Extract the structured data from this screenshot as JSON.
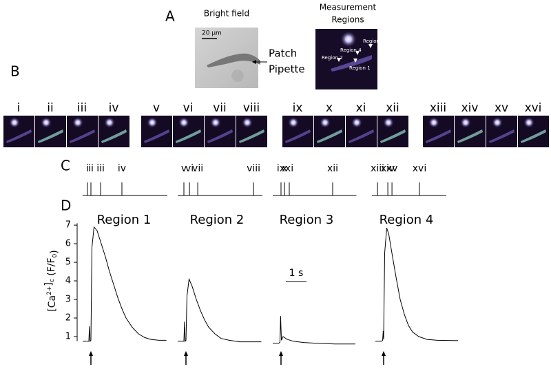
{
  "panels": {
    "A": "A",
    "B": "B",
    "C": "C",
    "D": "D"
  },
  "bright_field": {
    "title": "Bright field",
    "scale": "20 µm",
    "pointer": [
      "Patch",
      "Pipette"
    ]
  },
  "measurement": {
    "title": [
      "Measurement",
      "Regions"
    ],
    "regions": [
      "Region 3",
      "Region 4",
      "Region 2",
      "Region 1"
    ]
  },
  "timeline": [
    {
      "xlim": [
        0,
        4.1
      ],
      "events": [
        {
          "label": "i",
          "t": 0.23
        },
        {
          "label": "ii",
          "t": 0.4
        },
        {
          "label": "iii",
          "t": 0.87
        },
        {
          "label": "iv",
          "t": 1.9
        }
      ]
    },
    {
      "xlim": [
        0,
        4.1
      ],
      "events": [
        {
          "label": "v",
          "t": 0.3
        },
        {
          "label": "vi",
          "t": 0.57
        },
        {
          "label": "vii",
          "t": 0.97
        },
        {
          "label": "viii",
          "t": 3.67
        }
      ]
    },
    {
      "xlim": [
        0,
        4.05
      ],
      "events": [
        {
          "label": "ix",
          "t": 0.4
        },
        {
          "label": "x",
          "t": 0.57
        },
        {
          "label": "xi",
          "t": 0.8
        },
        {
          "label": "xii",
          "t": 2.9
        }
      ]
    },
    {
      "xlim": [
        0,
        3.6
      ],
      "events": [
        {
          "label": "xiii",
          "t": 0.27
        },
        {
          "label": "xiv",
          "t": 0.77
        },
        {
          "label": "xv",
          "t": 0.97
        },
        {
          "label": "xvi",
          "t": 2.3
        }
      ]
    }
  ],
  "scale_bar": {
    "label": "1 s",
    "value": 1
  },
  "chart_data": [
    {
      "type": "line",
      "title": "Region 1",
      "color": "#000000",
      "xlim": [
        0,
        4.1
      ],
      "ylim": [
        0.5,
        7.3
      ],
      "yticks": [
        1,
        2,
        3,
        4,
        5,
        6,
        7
      ],
      "ylabel_parts": [
        "[Ca",
        "2+",
        "]",
        "c",
        " (F/F",
        "0",
        ")"
      ],
      "stimulus": 0.4,
      "x": [
        0,
        0.3,
        0.33,
        0.36,
        0.4,
        0.45,
        0.55,
        0.7,
        0.9,
        1.1,
        1.3,
        1.5,
        1.7,
        1.9,
        2.1,
        2.4,
        2.7,
        3.0,
        3.3,
        3.7,
        4.05
      ],
      "values": [
        0.75,
        0.75,
        1.55,
        0.75,
        0.8,
        5.8,
        6.9,
        6.7,
        6.0,
        5.3,
        4.5,
        3.8,
        3.1,
        2.5,
        2.0,
        1.5,
        1.15,
        0.95,
        0.85,
        0.8,
        0.8
      ]
    },
    {
      "type": "line",
      "title": "Region 2",
      "color": "#000000",
      "xlim": [
        0,
        4.1
      ],
      "ylim": [
        0.5,
        7.3
      ],
      "stimulus": 0.4,
      "x": [
        0,
        0.3,
        0.33,
        0.36,
        0.4,
        0.45,
        0.55,
        0.7,
        0.9,
        1.1,
        1.3,
        1.5,
        1.8,
        2.1,
        2.5,
        3.0,
        3.5,
        4.05
      ],
      "values": [
        0.75,
        0.75,
        1.8,
        0.75,
        0.8,
        3.2,
        4.1,
        3.7,
        3.0,
        2.4,
        1.9,
        1.5,
        1.15,
        0.9,
        0.8,
        0.72,
        0.72,
        0.72
      ]
    },
    {
      "type": "line",
      "title": "Region 3",
      "color": "#000000",
      "xlim": [
        0,
        4.05
      ],
      "ylim": [
        0.5,
        7.3
      ],
      "stimulus": 0.4,
      "x": [
        0,
        0.3,
        0.35,
        0.38,
        0.42,
        0.5,
        0.7,
        1.0,
        1.5,
        2.0,
        3.0,
        4.0
      ],
      "values": [
        0.65,
        0.65,
        0.7,
        2.1,
        0.8,
        1.0,
        0.85,
        0.75,
        0.68,
        0.65,
        0.6,
        0.6
      ]
    },
    {
      "type": "line",
      "title": "Region 4",
      "color": "#000000",
      "xlim": [
        0,
        4.0
      ],
      "ylim": [
        0.5,
        7.3
      ],
      "stimulus": 0.4,
      "x": [
        0,
        0.3,
        0.35,
        0.38,
        0.4,
        0.45,
        0.55,
        0.65,
        0.8,
        1.0,
        1.2,
        1.4,
        1.6,
        1.8,
        2.1,
        2.5,
        3.0,
        4.0
      ],
      "values": [
        0.75,
        0.75,
        0.8,
        1.3,
        0.85,
        5.5,
        6.85,
        6.5,
        5.5,
        4.2,
        3.0,
        2.2,
        1.6,
        1.25,
        1.0,
        0.85,
        0.8,
        0.78
      ]
    }
  ]
}
